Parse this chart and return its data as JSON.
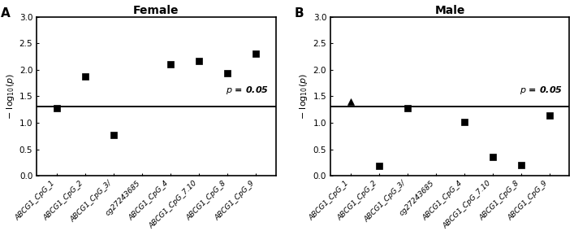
{
  "female": {
    "title": "Female",
    "panel_label": "A",
    "x_labels": [
      "ABCG1_CpG_1",
      "ABCG1_CpG_2",
      "ABCG1_CpG_3/",
      "cg27243685",
      "ABCG1_CpG_4",
      "ABCG1_CpG_7.10",
      "ABCG1_CpG_8",
      "ABCG1_CpG_9"
    ],
    "x_positions": [
      0,
      1,
      2,
      3,
      4,
      5,
      6,
      7
    ],
    "y_values": [
      1.28,
      1.88,
      0.77,
      null,
      2.1,
      2.16,
      1.93,
      2.3
    ],
    "markers": [
      "s",
      "s",
      "s",
      null,
      "s",
      "s",
      "s",
      "s"
    ],
    "threshold": 1.301
  },
  "male": {
    "title": "Male",
    "panel_label": "B",
    "x_labels": [
      "ABCG1_CpG_1",
      "ABCG1_CpG_2",
      "ABCG1_CpG_3/",
      "cg27243685",
      "ABCG1_CpG_4",
      "ABCG1_CpG_7.10",
      "ABCG1_CpG_8",
      "ABCG1_CpG_9"
    ],
    "x_positions": [
      0,
      1,
      2,
      3,
      4,
      5,
      6,
      7
    ],
    "y_values": [
      1.4,
      0.18,
      1.27,
      null,
      1.01,
      0.35,
      0.2,
      1.14
    ],
    "markers": [
      "^",
      "s",
      "s",
      null,
      "s",
      "s",
      "s",
      "s"
    ],
    "threshold": 1.301
  },
  "ylim": [
    0.0,
    3.0
  ],
  "yticks": [
    0.0,
    0.5,
    1.0,
    1.5,
    2.0,
    2.5,
    3.0
  ],
  "marker_size": 6,
  "marker_color": "black",
  "threshold_lw": 1.4,
  "title_fontsize": 10,
  "ylabel_fontsize": 8,
  "tick_labelsize": 7.5,
  "xtick_fontsize": 6.5,
  "p_text": "p = 0.05",
  "p_fontsize": 8,
  "panel_label_fontsize": 11
}
